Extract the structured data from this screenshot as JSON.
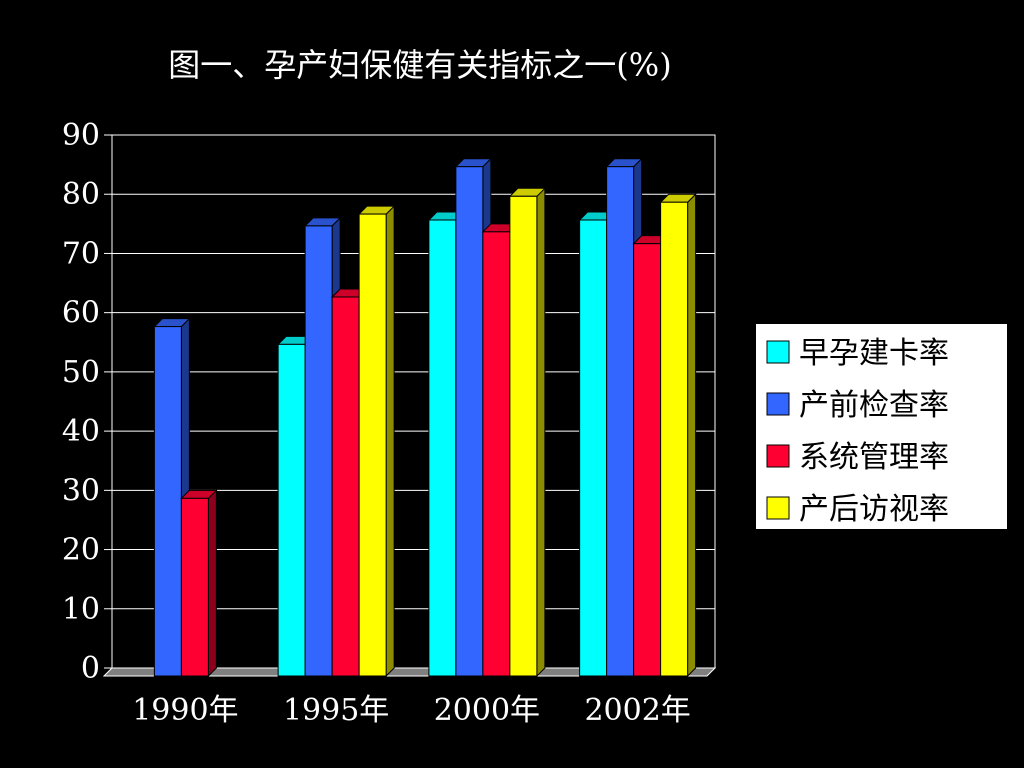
{
  "chart_data": {
    "type": "bar",
    "title": "图一、孕产妇保健有关指标之一(%)",
    "categories": [
      "1990年",
      "1995年",
      "2000年",
      "2002年"
    ],
    "series": [
      {
        "name": "早孕建卡率",
        "color": "#00ffff",
        "values": [
          null,
          56,
          77,
          77
        ]
      },
      {
        "name": "产前检查率",
        "color": "#3366ff",
        "values": [
          59,
          76,
          86,
          86
        ]
      },
      {
        "name": "系统管理率",
        "color": "#ff0033",
        "values": [
          30,
          64,
          75,
          73
        ]
      },
      {
        "name": "产后访视率",
        "color": "#ffff00",
        "values": [
          null,
          78,
          81,
          80
        ]
      }
    ],
    "ylim": [
      0,
      90
    ],
    "yticks": [
      0,
      10,
      20,
      30,
      40,
      50,
      60,
      70,
      80,
      90
    ],
    "grid": true,
    "legend_position": "right",
    "xlabel": "",
    "ylabel": ""
  }
}
